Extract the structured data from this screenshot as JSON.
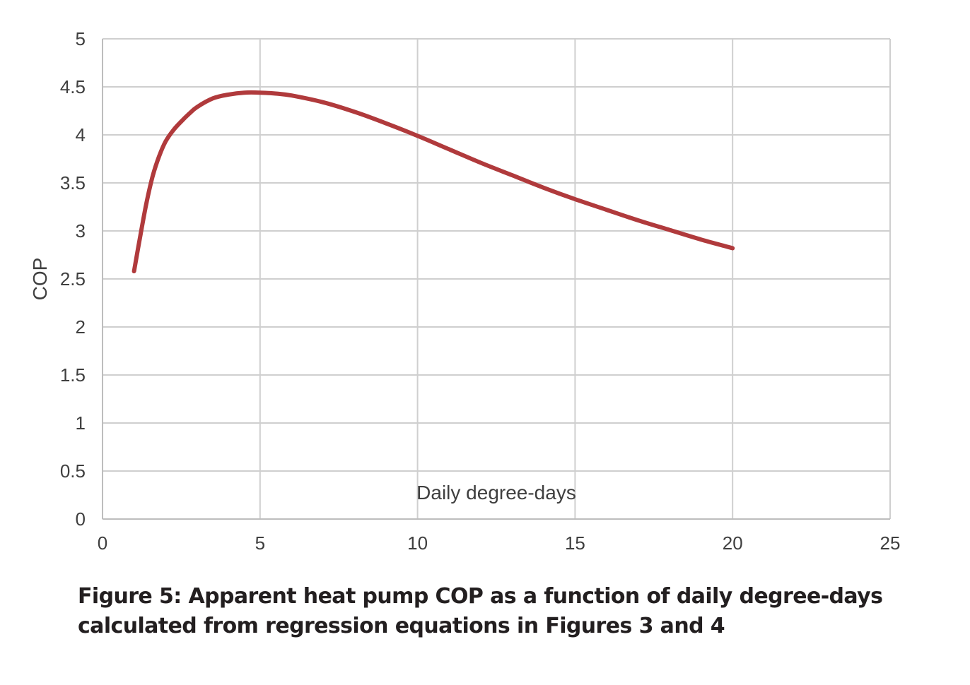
{
  "chart_data": {
    "type": "line",
    "xlabel": "Daily degree-days",
    "ylabel": "COP",
    "xlim": [
      0,
      25
    ],
    "ylim": [
      0,
      5
    ],
    "x_ticks": [
      "0",
      "5",
      "10",
      "15",
      "20",
      "25"
    ],
    "y_ticks": [
      "0",
      "0.5",
      "1",
      "1.5",
      "2",
      "2.5",
      "3",
      "3.5",
      "4",
      "4.5",
      "5"
    ],
    "grid": true,
    "legend": "none",
    "series": [
      {
        "color": "#b03a3c",
        "x": [
          1.0,
          1.2,
          1.4,
          1.6,
          1.8,
          2.0,
          2.25,
          2.5,
          2.75,
          3.0,
          3.5,
          4.0,
          4.5,
          5.0,
          5.5,
          6.0,
          7.0,
          8.0,
          9.0,
          10.0,
          11.0,
          12.0,
          13.0,
          14.0,
          15.0,
          16.0,
          17.0,
          18.0,
          19.0,
          20.0
        ],
        "y": [
          2.58,
          2.95,
          3.3,
          3.58,
          3.78,
          3.93,
          4.05,
          4.14,
          4.22,
          4.29,
          4.38,
          4.42,
          4.44,
          4.44,
          4.43,
          4.41,
          4.34,
          4.24,
          4.12,
          3.99,
          3.85,
          3.71,
          3.58,
          3.45,
          3.33,
          3.22,
          3.11,
          3.01,
          2.91,
          2.82
        ]
      }
    ]
  },
  "caption": {
    "line1": "Figure 5: Apparent heat pump COP as a function of daily degree-days",
    "line2": "calculated from regression equations in Figures 3 and 4"
  }
}
